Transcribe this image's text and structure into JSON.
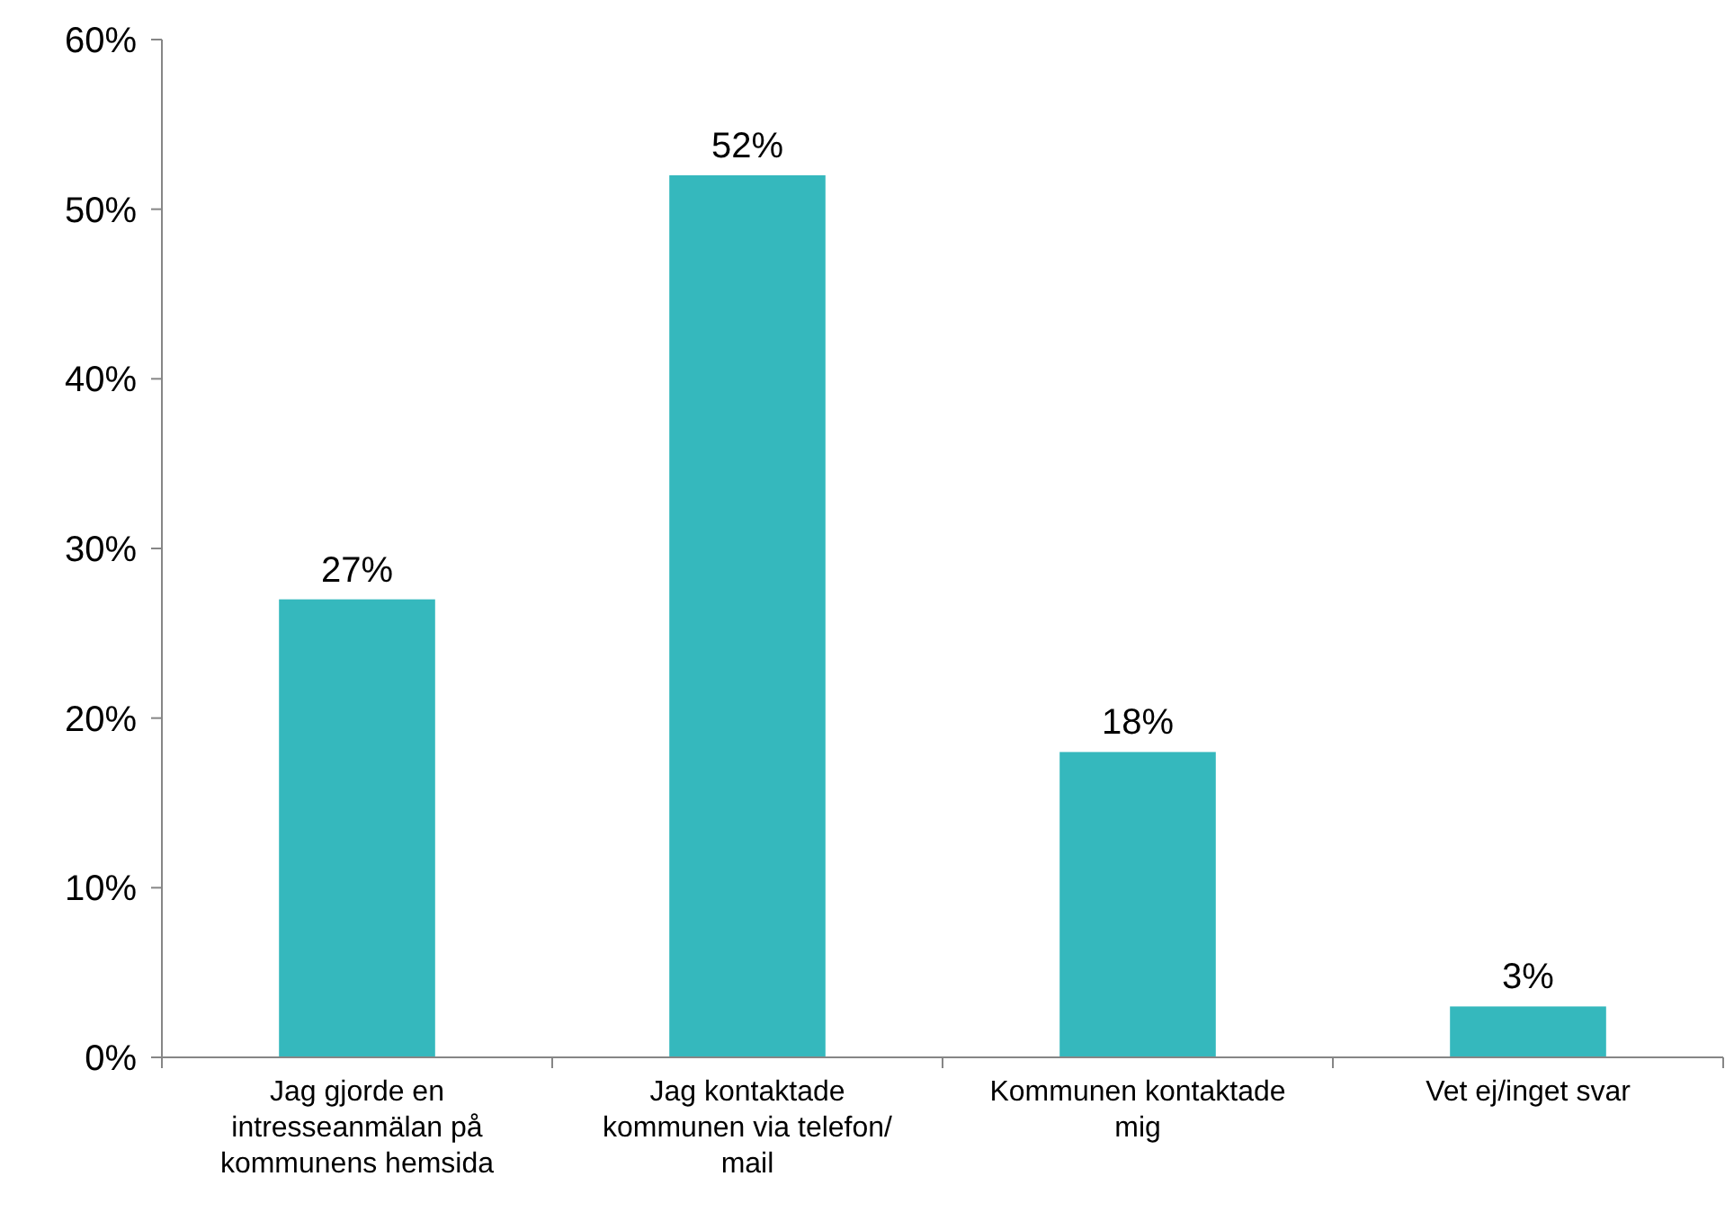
{
  "chart_data": {
    "type": "bar",
    "categories": [
      "Jag gjorde en intresseanmälan på kommunens hemsida",
      "Jag kontaktade kommunen via telefon/ mail",
      "Kommunen kontaktade mig",
      "Vet ej/inget svar"
    ],
    "values": [
      27,
      52,
      18,
      3
    ],
    "value_labels": [
      "27%",
      "52%",
      "18%",
      "3%"
    ],
    "color": "#35b8bd",
    "ylim": [
      0,
      60
    ],
    "yticks": [
      {
        "value": 0,
        "label": "0%"
      },
      {
        "value": 10,
        "label": "10%"
      },
      {
        "value": 20,
        "label": "20%"
      },
      {
        "value": 30,
        "label": "30%"
      },
      {
        "value": 40,
        "label": "40%"
      },
      {
        "value": 50,
        "label": "50%"
      },
      {
        "value": 60,
        "label": "60%"
      }
    ],
    "grid": false
  }
}
